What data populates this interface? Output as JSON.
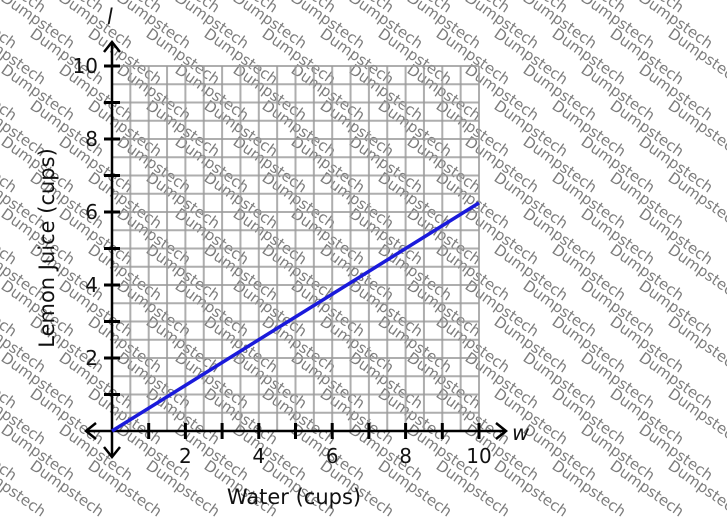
{
  "chart_data": {
    "type": "line",
    "xlabel": "Water (cups)",
    "ylabel": "Lemon Juice (cups)",
    "x_var": "w",
    "y_var": "l",
    "xlim": [
      0,
      10
    ],
    "ylim": [
      0,
      10
    ],
    "x_ticks": [
      2,
      4,
      6,
      8,
      10
    ],
    "y_ticks": [
      2,
      4,
      6,
      8,
      10
    ],
    "grid": true,
    "series": [
      {
        "x": [
          0,
          10
        ],
        "y": [
          0,
          6.25
        ],
        "color": "#1a1adb"
      }
    ]
  },
  "watermark": "Dumpstech"
}
